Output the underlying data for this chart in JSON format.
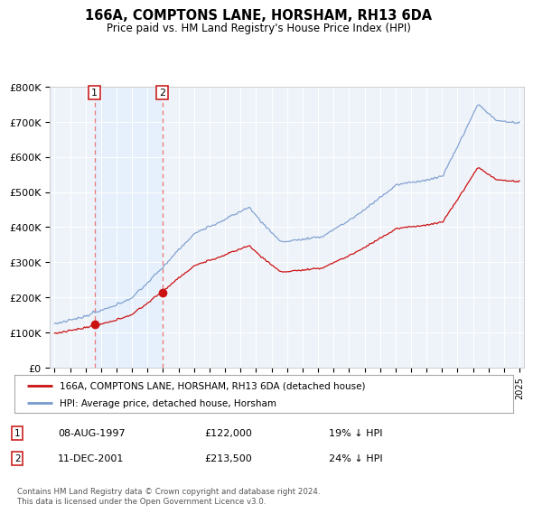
{
  "title": "166A, COMPTONS LANE, HORSHAM, RH13 6DA",
  "subtitle": "Price paid vs. HM Land Registry's House Price Index (HPI)",
  "property_label": "166A, COMPTONS LANE, HORSHAM, RH13 6DA (detached house)",
  "hpi_label": "HPI: Average price, detached house, Horsham",
  "sale1_date": "08-AUG-1997",
  "sale1_price": 122000,
  "sale1_hpi_pct": "19% ↓ HPI",
  "sale2_date": "11-DEC-2001",
  "sale2_price": 213500,
  "sale2_hpi_pct": "24% ↓ HPI",
  "footer": "Contains HM Land Registry data © Crown copyright and database right 2024.\nThis data is licensed under the Open Government Licence v3.0.",
  "ylim": [
    0,
    800000
  ],
  "yticks": [
    0,
    100000,
    200000,
    300000,
    400000,
    500000,
    600000,
    700000,
    800000
  ],
  "ytick_labels": [
    "£0",
    "£100K",
    "£200K",
    "£300K",
    "£400K",
    "£500K",
    "£600K",
    "£700K",
    "£800K"
  ],
  "sale1_year": 1997.583,
  "sale2_year": 2001.958,
  "hpi_color": "#7799cc",
  "property_color": "#cc1111",
  "dashed_color": "#ee7777",
  "shade_color": "#ddeeff",
  "background_color": "#eef3fa",
  "grid_color": "#ffffff",
  "legend_bg": "#f0f0f0"
}
